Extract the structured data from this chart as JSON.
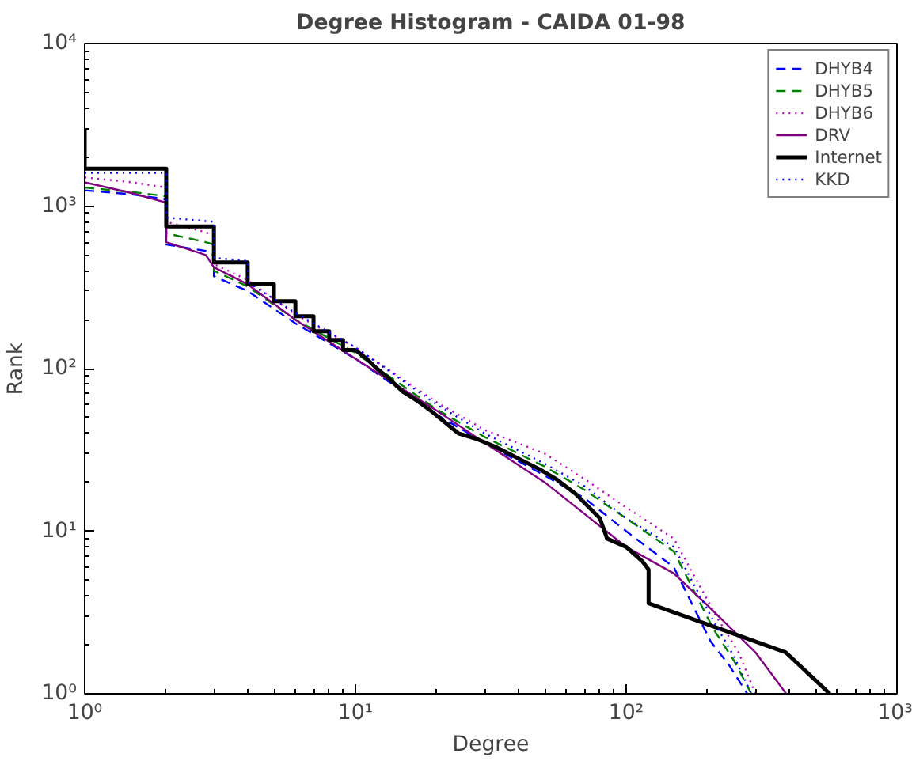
{
  "chart_data": {
    "type": "line",
    "title": "Degree Histogram - CAIDA 01-98",
    "xlabel": "Degree",
    "ylabel": "Rank",
    "log": "xy",
    "grid": false,
    "legend": "top right",
    "xlim": [
      1,
      1000
    ],
    "ylim": [
      1,
      10000
    ],
    "xticks": [
      {
        "value": 1,
        "label": "10⁰"
      },
      {
        "value": 10,
        "label": "10¹"
      },
      {
        "value": 100,
        "label": "10²"
      },
      {
        "value": 1000,
        "label": "10³"
      }
    ],
    "yticks": [
      {
        "value": 1,
        "label": "10⁰"
      },
      {
        "value": 10,
        "label": "10¹"
      },
      {
        "value": 100,
        "label": "10²"
      },
      {
        "value": 1000,
        "label": "10³"
      },
      {
        "value": 10000,
        "label": "10⁴"
      }
    ],
    "series": [
      {
        "name": "DHYB4",
        "color": "#0000ff",
        "line_style": "dashed",
        "x": [
          1,
          1.5,
          2,
          2,
          2.8,
          3,
          3,
          4,
          6,
          10,
          20,
          30,
          50,
          70,
          100,
          150,
          205,
          240,
          280
        ],
        "values": [
          1250,
          1180,
          1100,
          580,
          530,
          500,
          370,
          300,
          190,
          115,
          52,
          35,
          22,
          16,
          10,
          6,
          2.1,
          1.5,
          1
        ]
      },
      {
        "name": "DHYB5",
        "color": "#008000",
        "line_style": "dashed",
        "x": [
          1,
          1.5,
          2,
          2,
          2.8,
          3,
          3,
          4,
          6,
          10,
          20,
          30,
          50,
          70,
          100,
          150,
          210,
          250,
          290
        ],
        "values": [
          1300,
          1220,
          1150,
          680,
          600,
          580,
          400,
          320,
          200,
          125,
          56,
          38,
          25,
          18,
          12,
          7.5,
          2.5,
          1.6,
          1
        ]
      },
      {
        "name": "DHYB6",
        "color": "#bf00bf",
        "line_style": "dotted",
        "x": [
          1,
          1.5,
          2,
          2,
          2.8,
          3,
          3,
          4,
          6,
          10,
          20,
          30,
          50,
          70,
          100,
          150,
          215,
          260,
          300
        ],
        "values": [
          1500,
          1400,
          1300,
          800,
          690,
          650,
          440,
          350,
          215,
          135,
          62,
          42,
          30,
          21,
          14,
          9,
          3,
          1.8,
          1
        ]
      },
      {
        "name": "DRV",
        "color": "#800080",
        "line_style": "solid",
        "x": [
          1,
          1.5,
          2,
          2,
          2.8,
          3,
          4,
          6,
          10,
          20,
          30,
          50,
          100,
          150,
          196,
          300,
          390
        ],
        "values": [
          1400,
          1200,
          1050,
          600,
          500,
          420,
          330,
          200,
          115,
          55,
          35,
          20,
          8,
          5.5,
          3.6,
          1.8,
          1
        ]
      },
      {
        "name": "Internet",
        "color": "#000000",
        "line_style": "solid",
        "x": [
          1,
          1,
          2,
          2,
          3,
          3,
          4,
          4,
          5,
          5,
          6,
          6,
          7,
          7,
          8,
          8,
          9,
          9,
          10,
          11,
          12,
          13,
          14,
          15,
          17,
          19,
          21,
          24,
          28,
          33,
          40,
          48,
          55,
          65,
          80,
          85,
          100,
          115,
          121,
          121,
          388,
          565
        ],
        "values": [
          3000,
          1700,
          1700,
          750,
          750,
          450,
          450,
          330,
          330,
          260,
          260,
          210,
          210,
          170,
          170,
          150,
          150,
          130,
          130,
          115,
          100,
          90,
          80,
          72,
          63,
          55,
          48,
          40,
          37,
          33,
          28,
          24,
          21,
          17,
          12,
          9,
          8,
          6.5,
          5.8,
          3.6,
          1.8,
          1
        ]
      },
      {
        "name": "KKD",
        "color": "#0000ff",
        "line_style": "dotted",
        "x": [
          1,
          2,
          2,
          3,
          3,
          4,
          4,
          6,
          10,
          20,
          30,
          50,
          70,
          100,
          150,
          210,
          250,
          290
        ],
        "values": [
          1600,
          1600,
          850,
          800,
          480,
          460,
          340,
          220,
          135,
          60,
          40,
          26,
          19,
          12,
          8,
          2.8,
          1.7,
          1
        ]
      }
    ]
  }
}
